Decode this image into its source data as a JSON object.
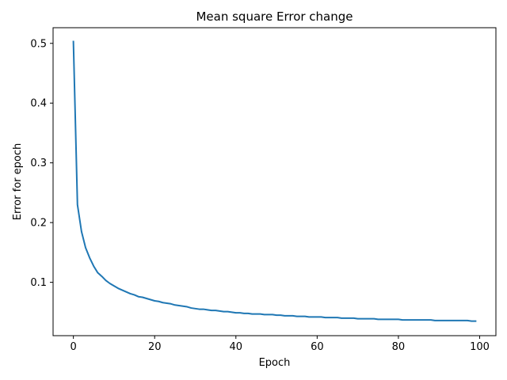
{
  "chart_data": {
    "type": "line",
    "title": "Mean square Error change",
    "xlabel": "Epoch",
    "ylabel": "Error for epoch",
    "xlim": [
      -5,
      104
    ],
    "ylim": [
      0.0107,
      0.5262
    ],
    "x_ticks": [
      0,
      20,
      40,
      60,
      80,
      100
    ],
    "y_ticks": [
      0.1,
      0.2,
      0.3,
      0.4,
      0.5
    ],
    "grid": false,
    "legend": "none",
    "series": [
      {
        "color": "#1f77b4",
        "x": [
          0,
          1,
          2,
          3,
          4,
          5,
          6,
          7,
          8,
          9,
          10,
          11,
          12,
          13,
          14,
          15,
          16,
          17,
          18,
          19,
          20,
          21,
          22,
          23,
          24,
          25,
          26,
          27,
          28,
          29,
          30,
          31,
          32,
          33,
          34,
          35,
          36,
          37,
          38,
          39,
          40,
          41,
          42,
          43,
          44,
          45,
          46,
          47,
          48,
          49,
          50,
          51,
          52,
          53,
          54,
          55,
          56,
          57,
          58,
          59,
          60,
          61,
          62,
          63,
          64,
          65,
          66,
          67,
          68,
          69,
          70,
          71,
          72,
          73,
          74,
          75,
          76,
          77,
          78,
          79,
          80,
          81,
          82,
          83,
          84,
          85,
          86,
          87,
          88,
          89,
          90,
          91,
          92,
          93,
          94,
          95,
          96,
          97,
          98,
          99
        ],
        "values": [
          0.503,
          0.23,
          0.185,
          0.158,
          0.141,
          0.127,
          0.116,
          0.11,
          0.103,
          0.098,
          0.094,
          0.09,
          0.087,
          0.084,
          0.081,
          0.079,
          0.076,
          0.075,
          0.073,
          0.071,
          0.069,
          0.068,
          0.066,
          0.065,
          0.064,
          0.062,
          0.061,
          0.06,
          0.059,
          0.057,
          0.056,
          0.055,
          0.055,
          0.054,
          0.053,
          0.053,
          0.052,
          0.051,
          0.051,
          0.05,
          0.049,
          0.049,
          0.048,
          0.048,
          0.047,
          0.047,
          0.047,
          0.046,
          0.046,
          0.046,
          0.045,
          0.045,
          0.044,
          0.044,
          0.044,
          0.043,
          0.043,
          0.043,
          0.042,
          0.042,
          0.042,
          0.042,
          0.041,
          0.041,
          0.041,
          0.041,
          0.04,
          0.04,
          0.04,
          0.04,
          0.039,
          0.039,
          0.039,
          0.039,
          0.039,
          0.038,
          0.038,
          0.038,
          0.038,
          0.038,
          0.038,
          0.037,
          0.037,
          0.037,
          0.037,
          0.037,
          0.037,
          0.037,
          0.037,
          0.036,
          0.036,
          0.036,
          0.036,
          0.036,
          0.036,
          0.036,
          0.036,
          0.036,
          0.035,
          0.035
        ]
      }
    ]
  }
}
